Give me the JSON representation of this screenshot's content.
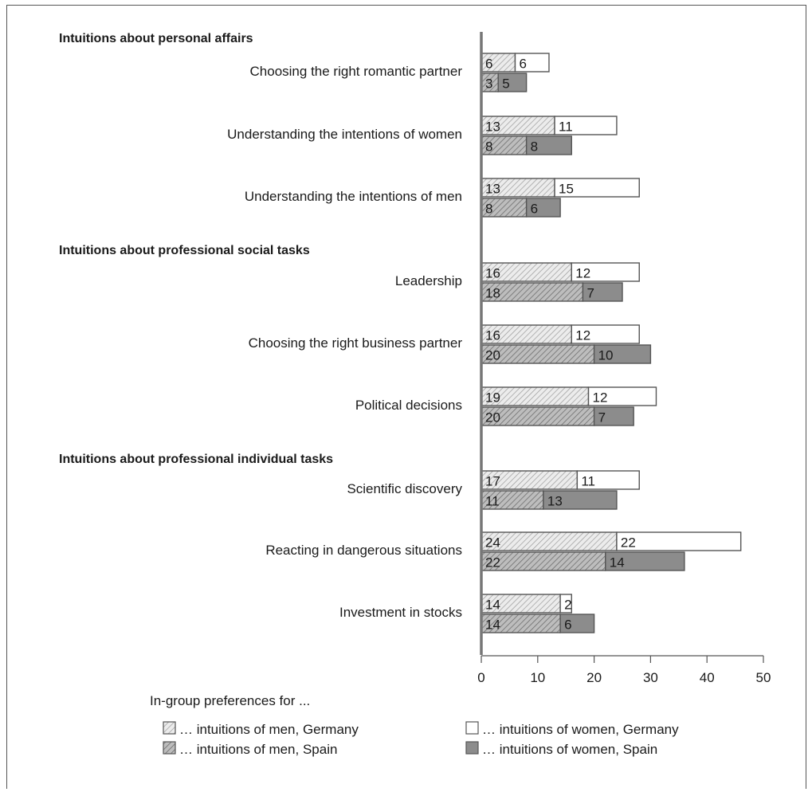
{
  "chart_data": {
    "type": "bar",
    "orientation": "horizontal",
    "stacked": true,
    "xlim": [
      0,
      50
    ],
    "xticks": [
      "0",
      "10",
      "20",
      "30",
      "40",
      "50"
    ],
    "xlabel": "",
    "ylabel": "",
    "title": "",
    "legend_title": "In-group preferences for ...",
    "legend_position": "bottom",
    "grid": false,
    "colors": {
      "men_germany": "#d8d8d8",
      "women_germany": "#ffffff",
      "men_spain": "#a8a8a8",
      "women_spain": "#8c8c8c",
      "axis": "#777777"
    },
    "legend": [
      {
        "key": "men_germany",
        "label": "… intuitions of men, Germany"
      },
      {
        "key": "women_germany",
        "label": "… intuitions of women, Germany"
      },
      {
        "key": "men_spain",
        "label": "… intuitions of men, Spain"
      },
      {
        "key": "women_spain",
        "label": "… intuitions of women, Spain"
      }
    ],
    "groups": [
      {
        "title": "Intuitions about personal affairs",
        "items": [
          {
            "label": "Choosing the right romantic partner",
            "germany": [
              6,
              6
            ],
            "spain": [
              3,
              5
            ]
          },
          {
            "label": "Understanding the intentions of women",
            "germany": [
              13,
              11
            ],
            "spain": [
              8,
              8
            ]
          },
          {
            "label": "Understanding the intentions of men",
            "germany": [
              13,
              15
            ],
            "spain": [
              8,
              6
            ]
          }
        ]
      },
      {
        "title": "Intuitions about professional social tasks",
        "items": [
          {
            "label": "Leadership",
            "germany": [
              16,
              12
            ],
            "spain": [
              18,
              7
            ]
          },
          {
            "label": "Choosing the right business partner",
            "germany": [
              16,
              12
            ],
            "spain": [
              20,
              10
            ]
          },
          {
            "label": "Political decisions",
            "germany": [
              19,
              12
            ],
            "spain": [
              20,
              7
            ]
          }
        ]
      },
      {
        "title": "Intuitions about professional individual tasks",
        "items": [
          {
            "label": "Scientific discovery",
            "germany": [
              17,
              11
            ],
            "spain": [
              11,
              13
            ]
          },
          {
            "label": "Reacting in dangerous situations",
            "germany": [
              24,
              22
            ],
            "spain": [
              22,
              14
            ]
          },
          {
            "label": "Investment in stocks",
            "germany": [
              14,
              2
            ],
            "spain": [
              14,
              6
            ]
          }
        ]
      }
    ]
  }
}
